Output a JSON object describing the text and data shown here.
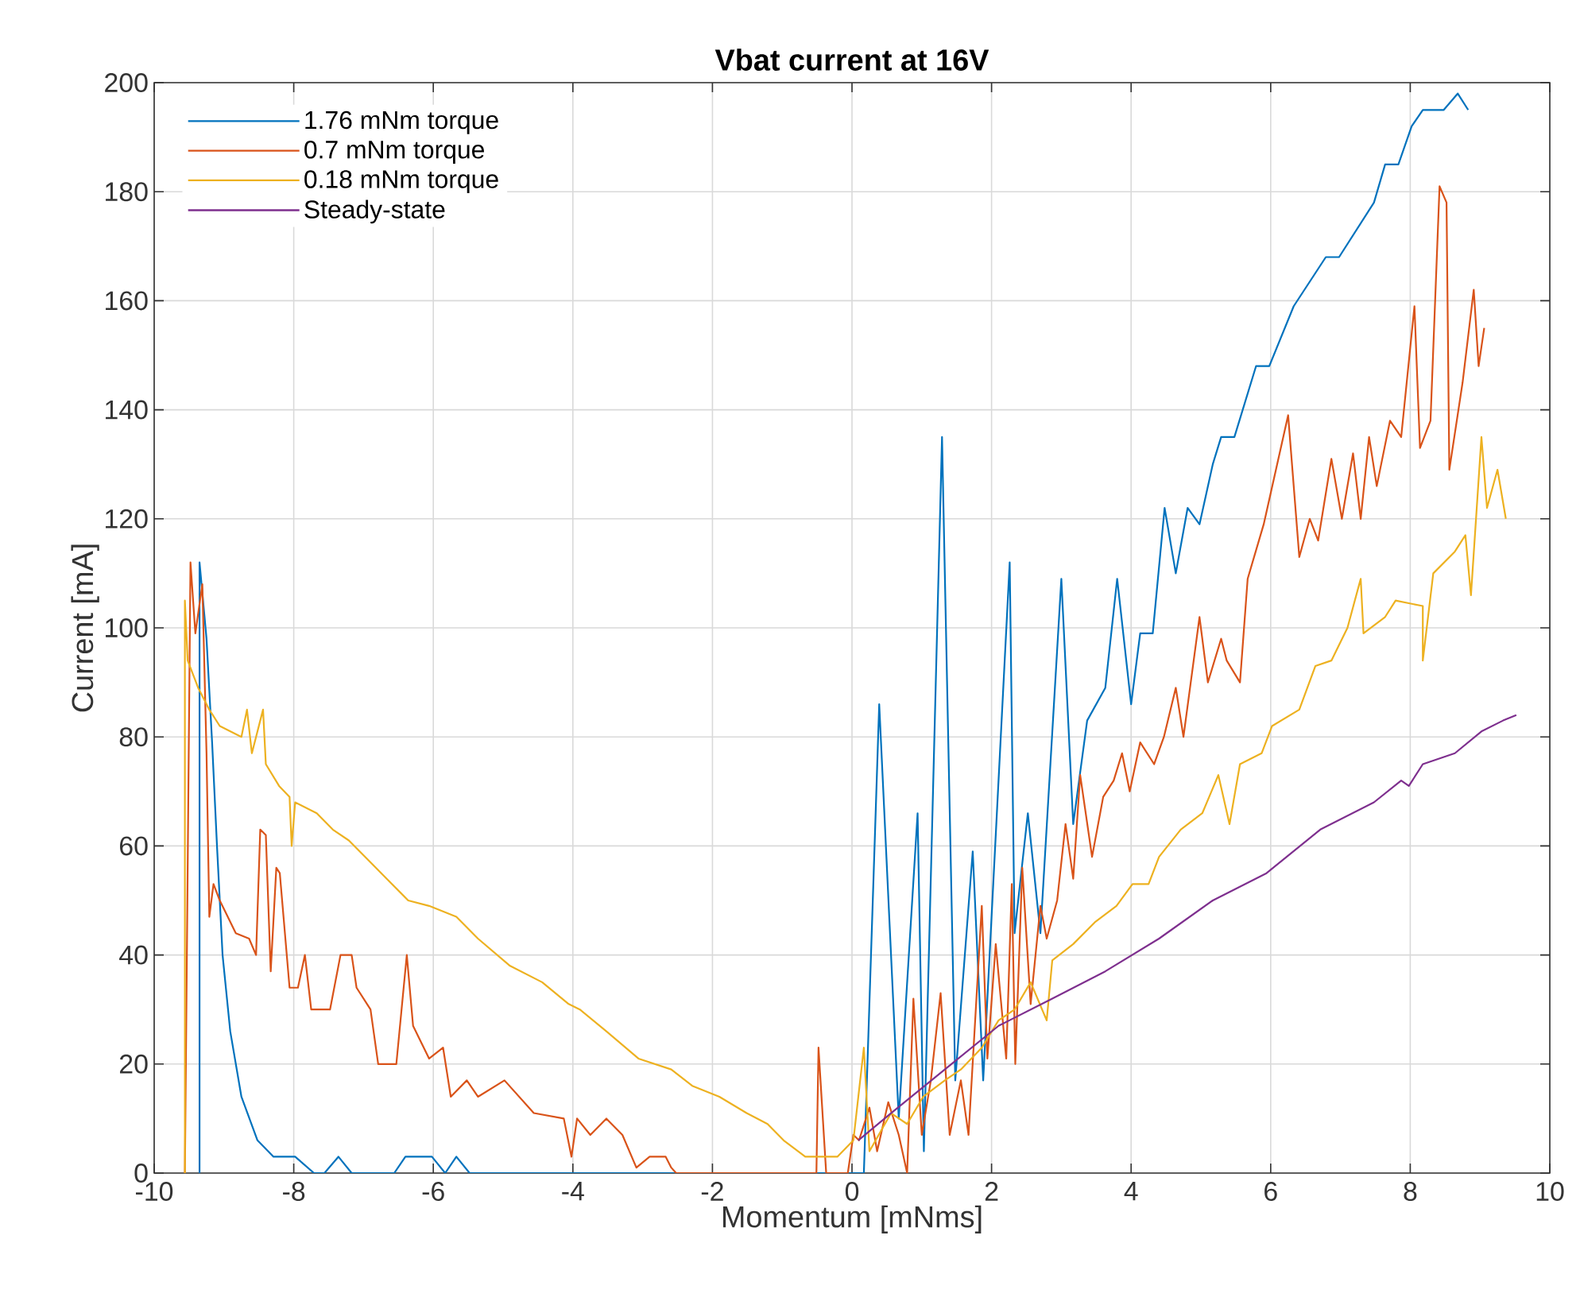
{
  "chart_data": {
    "type": "line",
    "title": "Vbat current at 16V",
    "xlabel": "Momentum [mNms]",
    "ylabel": "Current [mA]",
    "xlim": [
      -10,
      10
    ],
    "ylim": [
      0,
      200
    ],
    "xticks": [
      -10,
      -8,
      -6,
      -4,
      -2,
      0,
      2,
      4,
      6,
      8,
      10
    ],
    "yticks": [
      0,
      20,
      40,
      60,
      80,
      100,
      120,
      140,
      160,
      180,
      200
    ],
    "grid": true,
    "legend": "top left",
    "series": [
      {
        "name": "1.76 mNm torque",
        "color": "#0072bd",
        "x": [
          -9.35,
          -9.35,
          -9.25,
          -9.17,
          -9.1,
          -9.02,
          -8.91,
          -8.75,
          -8.52,
          -8.29,
          -7.98,
          -7.71,
          -7.56,
          -7.36,
          -7.17,
          -6.56,
          -6.4,
          -6.02,
          -5.83,
          -5.67,
          -5.48,
          0.17,
          0.39,
          0.67,
          0.94,
          1.03,
          1.29,
          1.48,
          1.73,
          1.88,
          2.26,
          2.33,
          2.52,
          2.7,
          3.0,
          3.17,
          3.37,
          3.63,
          3.8,
          4.0,
          4.13,
          4.31,
          4.48,
          4.64,
          4.81,
          4.98,
          5.17,
          5.29,
          5.48,
          5.79,
          5.98,
          6.33,
          6.79,
          6.98,
          7.48,
          7.64,
          7.83,
          8.02,
          8.18,
          8.48,
          8.68,
          8.83
        ],
        "values": [
          0,
          112,
          98,
          79,
          60,
          40,
          26,
          14,
          6,
          3,
          3,
          0,
          0,
          3,
          0,
          0,
          3,
          3,
          0,
          3,
          0,
          0,
          86,
          10,
          66,
          4,
          135,
          17,
          59,
          17,
          112,
          44,
          66,
          44,
          109,
          64,
          83,
          89,
          109,
          86,
          99,
          99,
          122,
          110,
          122,
          119,
          130,
          135,
          135,
          148,
          148,
          159,
          168,
          168,
          178,
          185,
          185,
          192,
          195,
          195,
          198,
          195
        ]
      },
      {
        "name": "0.7 mNm torque",
        "color": "#d95319",
        "x": [
          -9.56,
          -9.48,
          -9.41,
          -9.31,
          -9.25,
          -9.21,
          -9.15,
          -9.06,
          -8.83,
          -8.64,
          -8.54,
          -8.48,
          -8.4,
          -8.33,
          -8.25,
          -8.2,
          -8.06,
          -7.94,
          -7.84,
          -7.75,
          -7.48,
          -7.33,
          -7.17,
          -7.1,
          -6.9,
          -6.79,
          -6.53,
          -6.38,
          -6.29,
          -6.06,
          -5.86,
          -5.75,
          -5.52,
          -5.36,
          -4.98,
          -4.56,
          -4.13,
          -4.02,
          -3.94,
          -3.75,
          -3.52,
          -3.29,
          -3.09,
          -2.9,
          -2.67,
          -2.59,
          -2.52,
          -0.51,
          -0.48,
          -0.37,
          -0.06,
          0.02,
          0.1,
          0.25,
          0.36,
          0.52,
          0.67,
          0.79,
          0.88,
          1.0,
          1.13,
          1.27,
          1.4,
          1.56,
          1.67,
          1.86,
          1.94,
          2.06,
          2.21,
          2.29,
          2.34,
          2.44,
          2.56,
          2.7,
          2.79,
          2.94,
          3.06,
          3.17,
          3.27,
          3.44,
          3.6,
          3.75,
          3.87,
          3.98,
          4.13,
          4.33,
          4.47,
          4.64,
          4.75,
          4.98,
          5.1,
          5.29,
          5.37,
          5.56,
          5.67,
          5.9,
          6.25,
          6.41,
          6.56,
          6.68,
          6.87,
          7.02,
          7.18,
          7.29,
          7.41,
          7.52,
          7.71,
          7.87,
          8.06,
          8.14,
          8.29,
          8.42,
          8.52,
          8.56,
          8.75,
          8.91,
          8.98,
          9.06
        ],
        "values": [
          0,
          112,
          99,
          108,
          77,
          47,
          53,
          50,
          44,
          43,
          40,
          63,
          62,
          37,
          56,
          55,
          34,
          34,
          40,
          30,
          30,
          40,
          40,
          34,
          30,
          20,
          20,
          40,
          27,
          21,
          23,
          14,
          17,
          14,
          17,
          11,
          10,
          3,
          10,
          7,
          10,
          7,
          1,
          3,
          3,
          1,
          0,
          0,
          23,
          0,
          0,
          7,
          6,
          12,
          4,
          13,
          7,
          0,
          32,
          7,
          17,
          33,
          7,
          17,
          7,
          49,
          21,
          42,
          21,
          53,
          20,
          56,
          31,
          49,
          43,
          50,
          64,
          54,
          73,
          58,
          69,
          72,
          77,
          70,
          79,
          75,
          80,
          89,
          80,
          102,
          90,
          98,
          94,
          90,
          109,
          119,
          139,
          113,
          120,
          116,
          131,
          120,
          132,
          120,
          135,
          126,
          138,
          135,
          159,
          133,
          138,
          181,
          178,
          129,
          145,
          162,
          148,
          155
        ]
      },
      {
        "name": "0.18 mNm torque",
        "color": "#edb120",
        "x": [
          -9.56,
          -9.56,
          -9.52,
          -9.37,
          -9.21,
          -9.06,
          -8.75,
          -8.67,
          -8.6,
          -8.44,
          -8.4,
          -8.21,
          -8.06,
          -8.03,
          -7.98,
          -7.67,
          -7.44,
          -7.21,
          -6.9,
          -6.67,
          -6.36,
          -6.06,
          -5.67,
          -5.36,
          -4.9,
          -4.44,
          -4.06,
          -3.9,
          -3.52,
          -3.06,
          -2.59,
          -2.29,
          -1.9,
          -1.51,
          -1.21,
          -0.98,
          -0.67,
          -0.44,
          -0.21,
          0.02,
          0.17,
          0.25,
          0.56,
          0.79,
          1.02,
          1.33,
          1.56,
          1.86,
          2.1,
          2.33,
          2.56,
          2.79,
          2.87,
          3.17,
          3.48,
          3.79,
          4.02,
          4.25,
          4.4,
          4.71,
          5.02,
          5.25,
          5.41,
          5.56,
          5.87,
          6.02,
          6.41,
          6.64,
          6.87,
          7.1,
          7.29,
          7.33,
          7.64,
          7.79,
          8.18,
          8.18,
          8.33,
          8.64,
          8.79,
          8.87,
          9.02,
          9.1,
          9.25,
          9.37
        ],
        "values": [
          0,
          105,
          94,
          89,
          85,
          82,
          80,
          85,
          77,
          85,
          75,
          71,
          69,
          60,
          68,
          66,
          63,
          61,
          57,
          54,
          50,
          49,
          47,
          43,
          38,
          35,
          31,
          30,
          26,
          21,
          19,
          16,
          14,
          11,
          9,
          6,
          3,
          3,
          3,
          6,
          23,
          4,
          11,
          9,
          14,
          17,
          19,
          23,
          28,
          30,
          35,
          28,
          39,
          42,
          46,
          49,
          53,
          53,
          58,
          63,
          66,
          73,
          64,
          75,
          77,
          82,
          85,
          93,
          94,
          100,
          109,
          99,
          102,
          105,
          104,
          94,
          110,
          114,
          117,
          106,
          135,
          122,
          129,
          120
        ]
      },
      {
        "name": "Steady-state",
        "color": "#7e2f8e",
        "x": [
          0.09,
          0.56,
          1.33,
          2.1,
          2.87,
          3.63,
          4.4,
          5.17,
          5.94,
          6.71,
          7.48,
          7.87,
          7.98,
          8.18,
          8.64,
          9.02,
          9.33,
          9.52
        ],
        "values": [
          6,
          11,
          19,
          27,
          32,
          37,
          43,
          50,
          55,
          63,
          68,
          72,
          71,
          75,
          77,
          81,
          83,
          84
        ]
      }
    ]
  }
}
